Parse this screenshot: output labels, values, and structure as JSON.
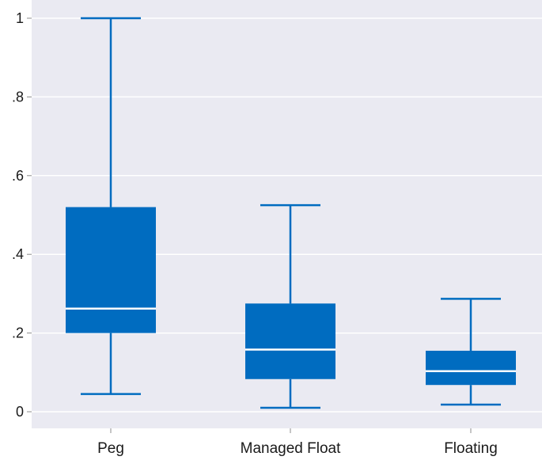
{
  "chart_data": {
    "type": "box",
    "title": "",
    "xlabel": "",
    "ylabel": "",
    "categories": [
      "Peg",
      "Managed Float",
      "Floating"
    ],
    "boxes": [
      {
        "category": "Peg",
        "whisker_low": 0.045,
        "q1": 0.2,
        "median": 0.262,
        "q3": 0.52,
        "whisker_high": 1.0
      },
      {
        "category": "Managed Float",
        "whisker_low": 0.01,
        "q1": 0.083,
        "median": 0.158,
        "q3": 0.275,
        "whisker_high": 0.525
      },
      {
        "category": "Floating",
        "whisker_low": 0.018,
        "q1": 0.068,
        "median": 0.103,
        "q3": 0.155,
        "whisker_high": 0.287
      }
    ],
    "yticks": [
      0,
      0.2,
      0.4,
      0.6,
      0.8,
      1
    ],
    "ytick_labels": [
      "0",
      ".2",
      ".4",
      ".6",
      ".8",
      "1"
    ],
    "ylim": [
      -0.05,
      1.03
    ],
    "grid": true,
    "legend": "none"
  },
  "colors": {
    "plot_background": "#eaeaf2",
    "box_fill": "#006cc0",
    "median_line": "#ffffff",
    "gridline": "#ffffff",
    "tick_text": "#1a1a1a"
  }
}
